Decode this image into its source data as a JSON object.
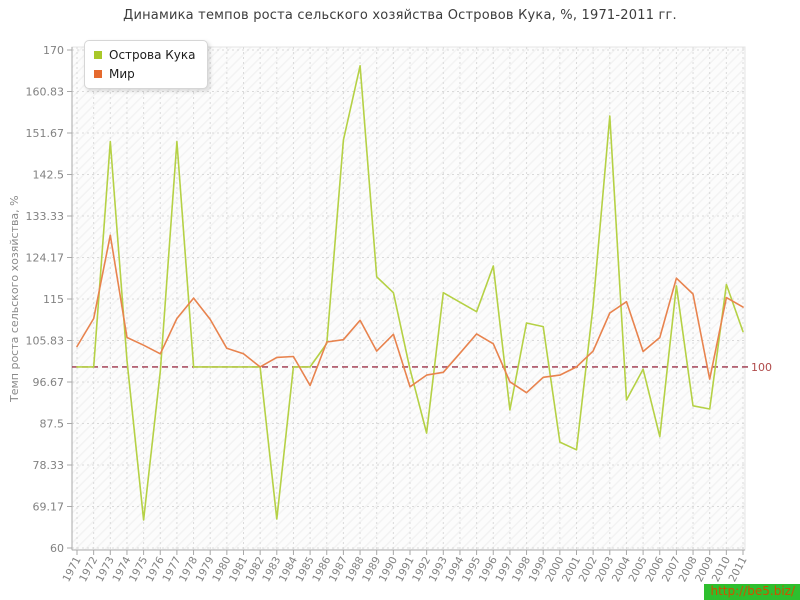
{
  "title": "Динамика темпов роста сельского хозяйства Островов Кука, %, 1971-2011 гг.",
  "watermark": "http://be5.biz/",
  "axis_colors": {
    "grid": "#dadada",
    "axis": "#a8a8a8",
    "tick_label": "#828282",
    "plot_border": "#e4e4e4",
    "plot_bg": "#fcfcfc",
    "plot_hatch": "#f3f3f3"
  },
  "chart_data": {
    "type": "line",
    "title": "Динамика темпов роста сельского хозяйства Островов Кука, %, 1971-2011 гг.",
    "xlabel": "",
    "ylabel": "Темп роста сельского хозяйства, %",
    "ylim": [
      60,
      170
    ],
    "grid": true,
    "legend_position": "top-left",
    "ytick_labels": [
      "170",
      "160.83",
      "151.67",
      "142.5",
      "133.33",
      "124.17",
      "115",
      "105.83",
      "96.67",
      "87.5",
      "78.33",
      "69.17",
      "60"
    ],
    "ytick_values": [
      170,
      160.83,
      151.67,
      142.5,
      133.33,
      124.17,
      115,
      105.83,
      96.67,
      87.5,
      78.33,
      69.17,
      60
    ],
    "reference_line": {
      "value": 100,
      "label": "100",
      "color": "#9c3247",
      "label_color": "#b04a4a",
      "style": "dashed"
    },
    "categories": [
      "1971",
      "1972",
      "1973",
      "1974",
      "1975",
      "1976",
      "1977",
      "1978",
      "1979",
      "1980",
      "1981",
      "1982",
      "1983",
      "1984",
      "1985",
      "1986",
      "1987",
      "1988",
      "1989",
      "1990",
      "1991",
      "1992",
      "1993",
      "1994",
      "1995",
      "1996",
      "1997",
      "1998",
      "1999",
      "2000",
      "2001",
      "2002",
      "2003",
      "2004",
      "2005",
      "2006",
      "2007",
      "2008",
      "2009",
      "2010",
      "2011"
    ],
    "series": [
      {
        "name": "Острова Кука",
        "color": "#b5d145",
        "swatch_color": "#a9c829",
        "values": [
          100,
          100,
          149.8,
          101.4,
          66.2,
          99,
          149.8,
          100,
          100,
          100,
          100,
          100,
          66.4,
          100,
          100,
          105.2,
          150.1,
          166.5,
          119.9,
          116.4,
          99.5,
          85.4,
          116.4,
          114.3,
          112.2,
          122.3,
          90.5,
          109.7,
          108.9,
          83.4,
          81.7,
          113.5,
          155.4,
          92.7,
          99.5,
          84.6,
          117.9,
          91.4,
          90.7,
          118.2,
          107.8
        ]
      },
      {
        "name": "Мир",
        "color": "#e8834e",
        "swatch_color": "#e56a2e",
        "values": [
          104.5,
          110.7,
          129.1,
          106.5,
          104.8,
          102.9,
          110.7,
          115.2,
          110.5,
          104.1,
          102.9,
          100,
          102.1,
          102.3,
          95.9,
          105.5,
          106,
          110.3,
          103.5,
          107.2,
          95.6,
          98.2,
          98.8,
          103,
          107.3,
          105.1,
          96.7,
          94.3,
          97.7,
          98.2,
          100,
          103.5,
          111.9,
          114.4,
          103.4,
          106.5,
          119.6,
          116.1,
          97.3,
          115.3,
          113.2
        ]
      }
    ]
  }
}
